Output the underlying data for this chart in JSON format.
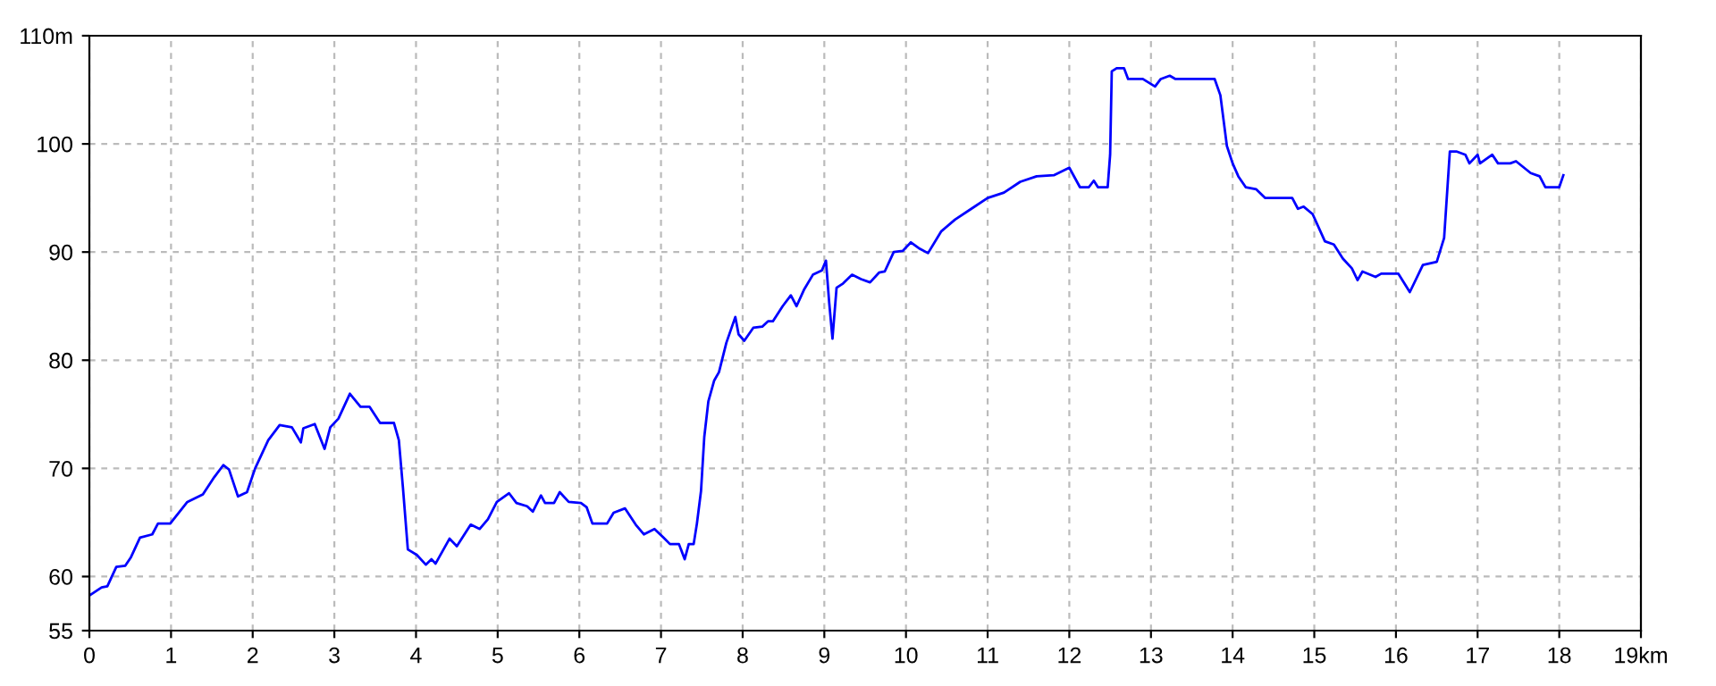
{
  "chart_data": {
    "type": "line",
    "x": [
      0.01,
      0.15,
      0.22,
      0.33,
      0.44,
      0.51,
      0.62,
      0.77,
      0.84,
      0.99,
      1.2,
      1.39,
      1.53,
      1.64,
      1.71,
      1.82,
      1.93,
      2.03,
      2.19,
      2.33,
      2.48,
      2.59,
      2.62,
      2.76,
      2.88,
      2.95,
      3.05,
      3.19,
      3.32,
      3.43,
      3.56,
      3.73,
      3.79,
      3.84,
      3.9,
      4.01,
      4.12,
      4.19,
      4.24,
      4.41,
      4.5,
      4.67,
      4.78,
      4.88,
      4.99,
      5.14,
      5.23,
      5.36,
      5.43,
      5.53,
      5.58,
      5.69,
      5.76,
      5.87,
      6.02,
      6.09,
      6.16,
      6.34,
      6.42,
      6.56,
      6.69,
      6.79,
      6.92,
      7.03,
      7.11,
      7.22,
      7.29,
      7.34,
      7.4,
      7.44,
      7.49,
      7.53,
      7.58,
      7.65,
      7.71,
      7.8,
      7.91,
      7.95,
      8.02,
      8.13,
      8.24,
      8.31,
      8.37,
      8.49,
      8.59,
      8.66,
      8.75,
      8.86,
      8.97,
      9.02,
      9.06,
      9.1,
      9.15,
      9.23,
      9.34,
      9.45,
      9.56,
      9.67,
      9.74,
      9.85,
      9.96,
      10.06,
      10.17,
      10.27,
      10.43,
      10.6,
      10.8,
      11.0,
      11.2,
      11.4,
      11.6,
      11.81,
      12.0,
      12.13,
      12.24,
      12.3,
      12.35,
      12.47,
      12.5,
      12.52,
      12.58,
      12.67,
      12.72,
      12.9,
      13.05,
      13.12,
      13.23,
      13.3,
      13.56,
      13.78,
      13.85,
      13.93,
      14.0,
      14.07,
      14.16,
      14.29,
      14.4,
      14.73,
      14.8,
      14.87,
      14.98,
      15.13,
      15.24,
      15.35,
      15.46,
      15.53,
      15.59,
      15.75,
      15.82,
      16.03,
      16.17,
      16.33,
      16.5,
      16.59,
      16.66,
      16.74,
      16.85,
      16.9,
      17.0,
      17.03,
      17.18,
      17.25,
      17.4,
      17.47,
      17.65,
      17.76,
      17.83,
      18.0,
      18.05
    ],
    "series": [
      {
        "color": "#0000ff",
        "values": [
          58.3,
          59,
          59.1,
          60.9,
          61,
          61.8,
          63.6,
          63.9,
          64.9,
          64.9,
          66.9,
          67.6,
          69.2,
          70.3,
          69.9,
          67.4,
          67.8,
          70,
          72.6,
          74,
          73.8,
          72.4,
          73.7,
          74.1,
          71.8,
          73.8,
          74.6,
          76.9,
          75.7,
          75.7,
          74.2,
          74.2,
          72.6,
          68.2,
          62.5,
          62,
          61.1,
          61.6,
          61.2,
          63.5,
          62.8,
          64.8,
          64.4,
          65.3,
          66.9,
          67.7,
          66.8,
          66.5,
          66,
          67.5,
          66.8,
          66.8,
          67.8,
          66.9,
          66.8,
          66.4,
          64.9,
          64.9,
          65.9,
          66.3,
          64.8,
          63.9,
          64.4,
          63.6,
          63,
          63,
          61.6,
          63,
          63,
          64.9,
          67.9,
          72.9,
          76.2,
          78.1,
          78.9,
          81.6,
          84,
          82.4,
          81.8,
          83,
          83.1,
          83.6,
          83.6,
          85,
          86,
          85,
          86.5,
          87.9,
          88.3,
          89.2,
          85.3,
          82,
          86.7,
          87.1,
          87.9,
          87.5,
          87.2,
          88.1,
          88.2,
          90,
          90.1,
          90.9,
          90.3,
          89.9,
          91.9,
          93,
          94,
          95,
          95.5,
          96.5,
          97,
          97.1,
          97.8,
          96,
          96,
          96.6,
          96,
          96,
          99,
          106.7,
          107,
          107,
          106,
          106,
          105.3,
          106,
          106.3,
          106,
          106,
          106,
          104.5,
          99.8,
          98.2,
          97,
          96,
          95.8,
          95,
          95,
          94,
          94.2,
          93.5,
          91,
          90.7,
          89.4,
          88.5,
          87.4,
          88.2,
          87.7,
          88,
          88,
          86.3,
          88.8,
          89.1,
          91.3,
          99.3,
          99.3,
          99,
          98.2,
          99,
          98.2,
          99,
          98.2,
          98.2,
          98.4,
          97.3,
          97,
          96,
          96,
          97.1
        ]
      }
    ],
    "xlim": [
      0,
      19
    ],
    "ylim": [
      55,
      110
    ],
    "xticks": [
      0,
      1,
      2,
      3,
      4,
      5,
      6,
      7,
      8,
      9,
      10,
      11,
      12,
      13,
      14,
      15,
      16,
      17,
      18,
      {
        "value": 19,
        "label": "19km"
      }
    ],
    "yticks": [
      55,
      60,
      70,
      80,
      90,
      100,
      {
        "value": 110,
        "label": "110m"
      }
    ],
    "grid": true,
    "marker": "none",
    "line_style": "solid"
  }
}
